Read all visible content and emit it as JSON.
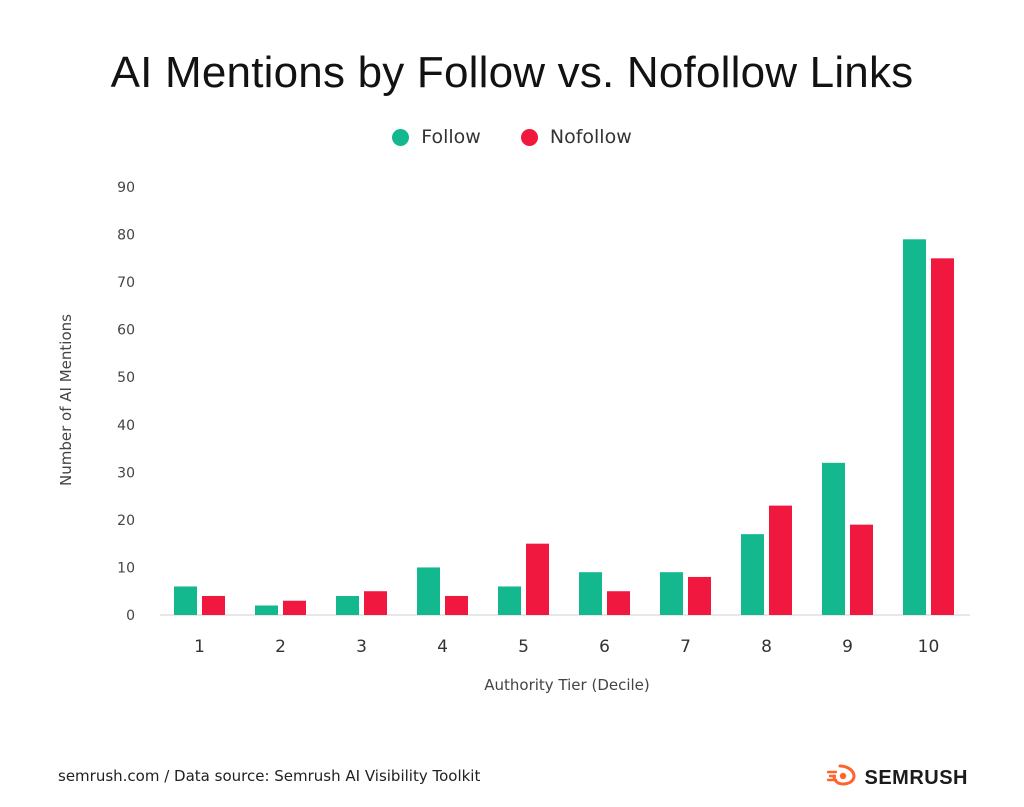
{
  "chart_data": {
    "type": "bar",
    "title": "AI Mentions by Follow vs. Nofollow Links",
    "xlabel": "Authority Tier (Decile)",
    "ylabel": "Number of AI Mentions",
    "categories": [
      "1",
      "2",
      "3",
      "4",
      "5",
      "6",
      "7",
      "8",
      "9",
      "10"
    ],
    "series": [
      {
        "name": "Follow",
        "color": "#14b88e",
        "values": [
          6,
          2,
          4,
          10,
          6,
          9,
          9,
          17,
          32,
          79
        ]
      },
      {
        "name": "Nofollow",
        "color": "#f0183e",
        "values": [
          4,
          3,
          5,
          4,
          15,
          5,
          8,
          23,
          19,
          75
        ]
      }
    ],
    "ylim": [
      0,
      90
    ],
    "yticks": [
      0,
      10,
      20,
      30,
      40,
      50,
      60,
      70,
      80,
      90
    ],
    "grid": false,
    "legend": "top-center"
  },
  "footer": {
    "source": "semrush.com / Data source: Semrush AI Visibility Toolkit",
    "brand": "SEMRUSH",
    "brand_icon": "semrush-fire-icon",
    "brand_color": "#ff642d"
  }
}
